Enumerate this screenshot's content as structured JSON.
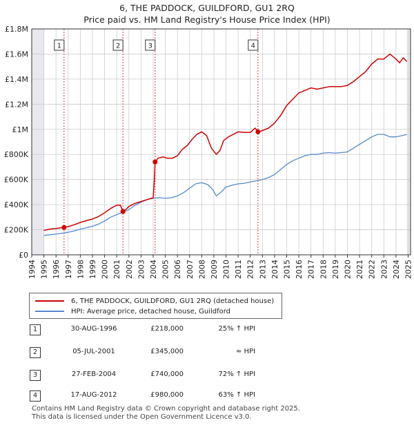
{
  "title_line1": "6, THE PADDOCK, GUILDFORD, GU1 2RQ",
  "title_line2": "Price paid vs. HM Land Registry's House Price Index (HPI)",
  "chart_data": {
    "type": "line",
    "ylim": [
      0,
      1800000
    ],
    "xlim": [
      1994,
      2025.2
    ],
    "y_ticks": [
      0,
      200000,
      400000,
      600000,
      800000,
      1000000,
      1200000,
      1400000,
      1600000,
      1800000
    ],
    "y_tick_labels": [
      "£0",
      "£200K",
      "£400K",
      "£600K",
      "£800K",
      "£1M",
      "£1.2M",
      "£1.4M",
      "£1.6M",
      "£1.8M"
    ],
    "x_ticks": [
      1994,
      1995,
      1996,
      1997,
      1998,
      1999,
      2000,
      2001,
      2002,
      2003,
      2004,
      2005,
      2006,
      2007,
      2008,
      2009,
      2010,
      2011,
      2012,
      2013,
      2014,
      2015,
      2016,
      2017,
      2018,
      2019,
      2020,
      2021,
      2022,
      2023,
      2024,
      2025
    ],
    "shaded_ranges": [
      [
        1994,
        1995.0
      ],
      [
        2024.9,
        2025.2
      ]
    ],
    "series": [
      {
        "name": "6, THE PADDOCK, GUILDFORD, GU1 2RQ (detached house)",
        "color": "#cc0000",
        "x": [
          1995.0,
          1995.5,
          1996.0,
          1996.66,
          1997.0,
          1997.5,
          1998.0,
          1998.5,
          1999.0,
          1999.5,
          2000.0,
          2000.5,
          2001.0,
          2001.3,
          2001.51,
          2001.8,
          2002.0,
          2002.5,
          2003.0,
          2003.5,
          2004.0,
          2004.1,
          2004.16,
          2004.4,
          2004.8,
          2005.2,
          2005.6,
          2006.0,
          2006.4,
          2006.8,
          2007.2,
          2007.6,
          2008.0,
          2008.4,
          2008.8,
          2009.2,
          2009.5,
          2009.8,
          2010.2,
          2010.6,
          2011.0,
          2011.5,
          2012.0,
          2012.4,
          2012.63,
          2013.0,
          2013.5,
          2014.0,
          2014.5,
          2015.0,
          2015.5,
          2016.0,
          2016.5,
          2017.0,
          2017.5,
          2018.0,
          2018.5,
          2019.0,
          2019.5,
          2020.0,
          2020.5,
          2021.0,
          2021.5,
          2022.0,
          2022.5,
          2023.0,
          2023.5,
          2024.0,
          2024.3,
          2024.6,
          2024.9
        ],
        "values": [
          195000,
          205000,
          210000,
          218000,
          225000,
          240000,
          258000,
          272000,
          285000,
          305000,
          335000,
          370000,
          395000,
          395000,
          345000,
          365000,
          385000,
          410000,
          425000,
          440000,
          455000,
          600000,
          740000,
          770000,
          780000,
          770000,
          770000,
          790000,
          840000,
          870000,
          920000,
          960000,
          980000,
          950000,
          850000,
          800000,
          830000,
          910000,
          940000,
          960000,
          980000,
          975000,
          975000,
          1010000,
          980000,
          990000,
          1010000,
          1050000,
          1110000,
          1190000,
          1240000,
          1290000,
          1310000,
          1330000,
          1320000,
          1330000,
          1340000,
          1340000,
          1340000,
          1350000,
          1380000,
          1420000,
          1460000,
          1520000,
          1560000,
          1560000,
          1600000,
          1560000,
          1530000,
          1570000,
          1540000
        ]
      },
      {
        "name": "HPI: Average price, detached house, Guildford",
        "color": "#5588cc",
        "x": [
          1995.0,
          1995.5,
          1996.0,
          1996.5,
          1997.0,
          1997.5,
          1998.0,
          1998.5,
          1999.0,
          1999.5,
          2000.0,
          2000.5,
          2001.0,
          2001.5,
          2002.0,
          2002.5,
          2003.0,
          2003.5,
          2004.0,
          2004.5,
          2005.0,
          2005.5,
          2006.0,
          2006.5,
          2007.0,
          2007.5,
          2008.0,
          2008.5,
          2008.9,
          2009.2,
          2009.6,
          2010.0,
          2010.5,
          2011.0,
          2011.5,
          2012.0,
          2012.5,
          2013.0,
          2013.5,
          2014.0,
          2014.5,
          2015.0,
          2015.5,
          2016.0,
          2016.5,
          2017.0,
          2017.5,
          2018.0,
          2018.5,
          2019.0,
          2019.5,
          2020.0,
          2020.5,
          2021.0,
          2021.5,
          2022.0,
          2022.5,
          2023.0,
          2023.5,
          2024.0,
          2024.5,
          2024.9
        ],
        "values": [
          155000,
          160000,
          165000,
          172000,
          180000,
          190000,
          205000,
          215000,
          228000,
          245000,
          270000,
          300000,
          320000,
          340000,
          360000,
          395000,
          420000,
          440000,
          450000,
          455000,
          450000,
          455000,
          470000,
          495000,
          530000,
          565000,
          575000,
          560000,
          520000,
          470000,
          500000,
          540000,
          555000,
          565000,
          570000,
          580000,
          590000,
          600000,
          615000,
          640000,
          680000,
          720000,
          750000,
          770000,
          790000,
          800000,
          800000,
          810000,
          815000,
          810000,
          815000,
          820000,
          850000,
          880000,
          910000,
          940000,
          960000,
          960000,
          940000,
          940000,
          950000,
          960000
        ]
      }
    ],
    "sales": [
      {
        "num": "1",
        "x": 1996.66,
        "value": 218000,
        "date": "30-AUG-1996",
        "price": "£218,000",
        "hpi": "25% ↑ HPI"
      },
      {
        "num": "2",
        "x": 2001.51,
        "value": 345000,
        "date": "05-JUL-2001",
        "price": "£345,000",
        "hpi": "≈ HPI"
      },
      {
        "num": "3",
        "x": 2004.16,
        "value": 740000,
        "date": "27-FEB-2004",
        "price": "£740,000",
        "hpi": "72% ↑ HPI"
      },
      {
        "num": "4",
        "x": 2012.63,
        "value": 980000,
        "date": "17-AUG-2012",
        "price": "£980,000",
        "hpi": "63% ↑ HPI"
      }
    ]
  },
  "legend": {
    "red_label": "6, THE PADDOCK, GUILDFORD, GU1 2RQ (detached house)",
    "blue_label": "HPI: Average price, detached house, Guildford"
  },
  "footer": {
    "line1": "Contains HM Land Registry data © Crown copyright and database right 2025.",
    "line2": "This data is licensed under the Open Government Licence v3.0."
  }
}
